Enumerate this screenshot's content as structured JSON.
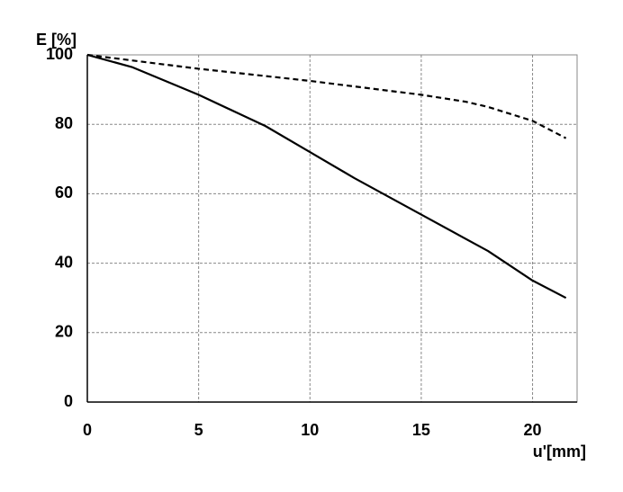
{
  "chart_data": {
    "type": "line",
    "y_label": "E [%]",
    "x_label": "u'[mm]",
    "xlim": [
      0,
      22
    ],
    "ylim": [
      0,
      100
    ],
    "xticks": [
      0,
      5,
      10,
      15,
      20
    ],
    "yticks": [
      0,
      20,
      40,
      60,
      80,
      100
    ],
    "grid": true,
    "series": [
      {
        "color": "#000000",
        "style": "solid",
        "x": [
          0,
          2,
          5,
          8,
          10,
          12,
          15,
          18,
          20,
          21.5
        ],
        "values": [
          100,
          96.5,
          88.5,
          79.5,
          72,
          64.5,
          54,
          43.5,
          35,
          30
        ]
      },
      {
        "color": "#000000",
        "style": "dashed",
        "x": [
          0,
          5,
          10,
          15,
          17,
          18,
          20,
          21.5
        ],
        "values": [
          100,
          96,
          92.5,
          88.5,
          86.5,
          85,
          81,
          76
        ]
      }
    ]
  }
}
